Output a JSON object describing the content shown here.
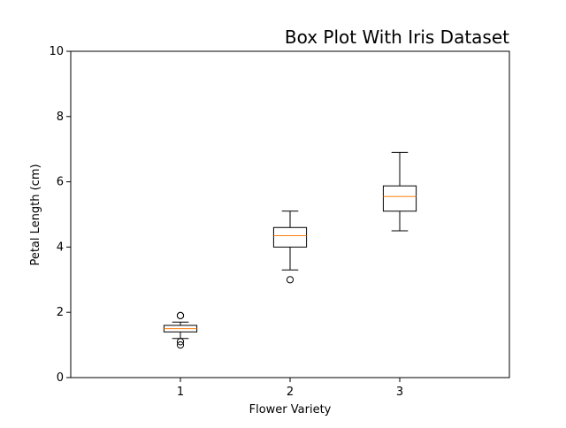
{
  "chart_data": {
    "type": "box",
    "title": "Box Plot With Iris Dataset",
    "xlabel": "Flower Variety",
    "ylabel": "Petal Length (cm)",
    "categories": [
      "1",
      "2",
      "3"
    ],
    "ylim": [
      0,
      10
    ],
    "yticks": [
      "0",
      "2",
      "4",
      "6",
      "8",
      "10"
    ],
    "grid": false,
    "colors": {
      "box": "#000000",
      "median": "#ff7f0e"
    },
    "boxes": [
      {
        "category": "1",
        "whisker_low": 1.2,
        "q1": 1.4,
        "median": 1.5,
        "q3": 1.6,
        "whisker_high": 1.7,
        "outliers": [
          1.0,
          1.1,
          1.9,
          1.9
        ]
      },
      {
        "category": "2",
        "whisker_low": 3.3,
        "q1": 4.0,
        "median": 4.35,
        "q3": 4.6,
        "whisker_high": 5.1,
        "outliers": [
          3.0
        ]
      },
      {
        "category": "3",
        "whisker_low": 4.5,
        "q1": 5.1,
        "median": 5.55,
        "q3": 5.875,
        "whisker_high": 6.9,
        "outliers": []
      }
    ]
  }
}
